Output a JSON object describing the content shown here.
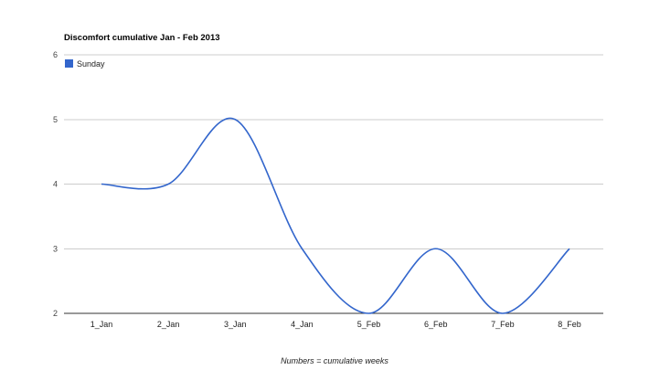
{
  "chart_data": {
    "type": "line",
    "title": "Discomfort cumulative Jan - Feb 2013",
    "xlabel": "Numbers = cumulative weeks",
    "ylabel": "",
    "categories": [
      "1_Jan",
      "2_Jan",
      "3_Jan",
      "4_Jan",
      "5_Feb",
      "6_Feb",
      "7_Feb",
      "8_Feb"
    ],
    "series": [
      {
        "name": "Sunday",
        "values": [
          4,
          4,
          5,
          3,
          2,
          3,
          2,
          3
        ],
        "color": "#3366cc"
      }
    ],
    "ylim": [
      2,
      6
    ],
    "yticks": [
      2,
      3,
      4,
      5,
      6
    ],
    "grid": true,
    "legend_position": "top-left",
    "curve": "smooth"
  }
}
